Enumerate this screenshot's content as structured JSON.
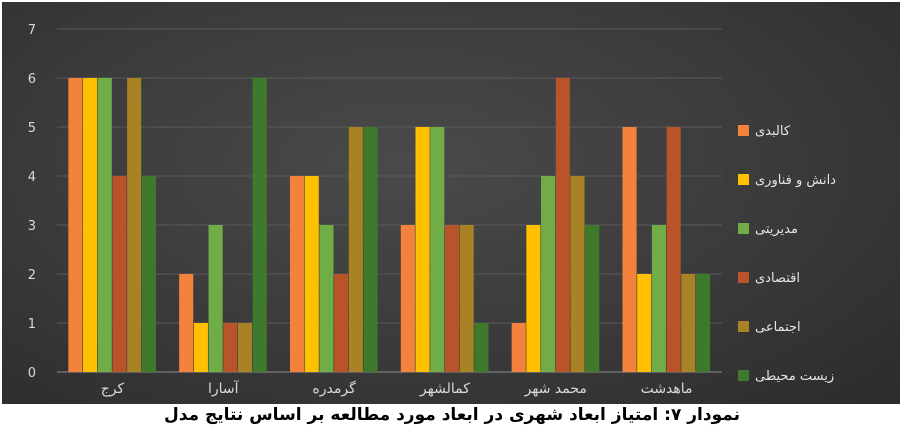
{
  "chart_data": {
    "type": "bar",
    "categories": [
      "کرج",
      "آسارا",
      "گرمدره",
      "کمالشهر",
      "محمد شهر",
      "ماهدشت"
    ],
    "series": [
      {
        "name": "کالبدی",
        "color": "#f4823c",
        "values": [
          6,
          2,
          4,
          3,
          1,
          5
        ]
      },
      {
        "name": "دانش و فناوری",
        "color": "#ffc000",
        "values": [
          6,
          1,
          4,
          5,
          3,
          2
        ]
      },
      {
        "name": "مدیریتی",
        "color": "#70ad47",
        "values": [
          6,
          3,
          3,
          5,
          4,
          3
        ]
      },
      {
        "name": "اقتصادی",
        "color": "#b8532a",
        "values": [
          4,
          1,
          2,
          3,
          6,
          5
        ]
      },
      {
        "name": "اجتماعی",
        "color": "#a88224",
        "values": [
          6,
          1,
          5,
          3,
          4,
          2
        ]
      },
      {
        "name": "زیست محیطی",
        "color": "#3f7a2c",
        "values": [
          4,
          6,
          5,
          1,
          3,
          2
        ]
      }
    ],
    "ylim": [
      0,
      7
    ],
    "yticks": [
      0,
      1,
      2,
      3,
      4,
      5,
      6,
      7
    ],
    "grid": true,
    "legend_position": "right",
    "title": "",
    "xlabel": "",
    "ylabel": ""
  },
  "caption": "نمودار ۷: امتیاز ابعاد شهری در ابعاد مورد مطالعه بر اساس نتایج مدل"
}
